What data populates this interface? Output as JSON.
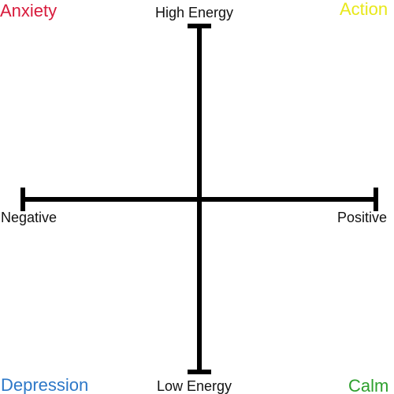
{
  "axes": {
    "top_label": "High Energy",
    "bottom_label": "Low Energy",
    "left_label": "Negative",
    "right_label": "Positive",
    "stroke_color": "#000000"
  },
  "quadrants": {
    "top_left": {
      "label": "Anxiety",
      "color": "#d81b3c"
    },
    "top_right": {
      "label": "Action",
      "color": "#e8e81a"
    },
    "bottom_left": {
      "label": "Depression",
      "color": "#2d78c8"
    },
    "bottom_right": {
      "label": "Calm",
      "color": "#2ea02e"
    }
  }
}
